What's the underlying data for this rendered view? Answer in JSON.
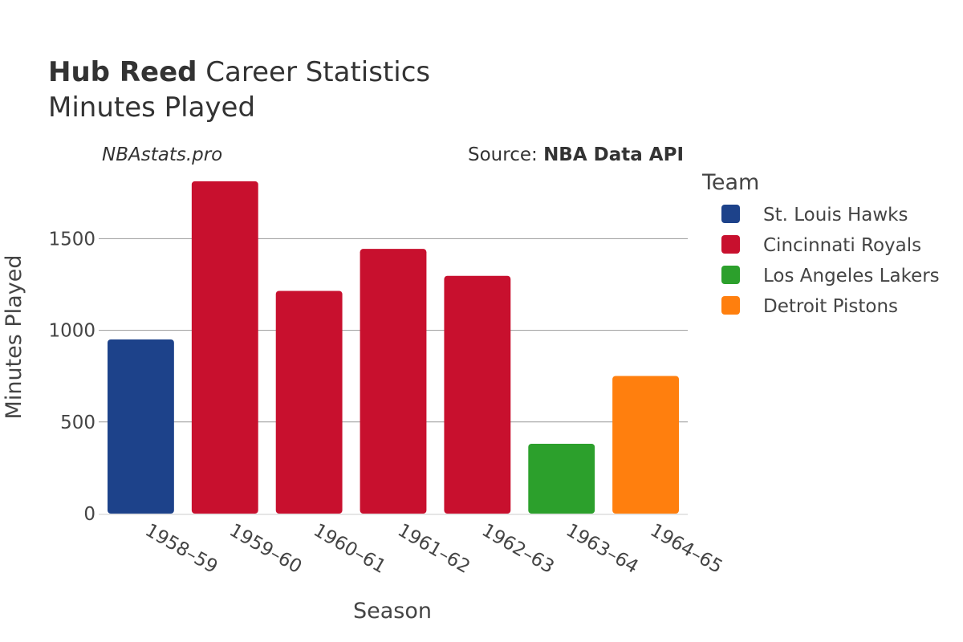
{
  "title": {
    "player": "Hub Reed",
    "suffix": "Career Statistics",
    "subtitle": "Minutes Played"
  },
  "watermark": "NBAstats.pro",
  "source": {
    "prefix": "Source: ",
    "name": "NBA Data API"
  },
  "chart_data": {
    "type": "bar",
    "categories": [
      "1958–59",
      "1959–60",
      "1960–61",
      "1961–62",
      "1962–63",
      "1963–64",
      "1964–65"
    ],
    "values": [
      950,
      1813,
      1215,
      1444,
      1297,
      381,
      751
    ],
    "teams": [
      "St. Louis Hawks",
      "Cincinnati Royals",
      "Cincinnati Royals",
      "Cincinnati Royals",
      "Cincinnati Royals",
      "Los Angeles Lakers",
      "Detroit Pistons"
    ],
    "xlabel": "Season",
    "ylabel": "Minutes Played",
    "ylim": [
      0,
      1900
    ],
    "yticks": [
      0,
      500,
      1000,
      1500
    ],
    "grid": true,
    "legend": {
      "title": "Team",
      "position": "right",
      "entries": [
        {
          "name": "St. Louis Hawks",
          "color": "#1d428a"
        },
        {
          "name": "Cincinnati Royals",
          "color": "#c8102e"
        },
        {
          "name": "Los Angeles Lakers",
          "color": "#2ca02c"
        },
        {
          "name": "Detroit Pistons",
          "color": "#ff7f0e"
        }
      ]
    }
  }
}
